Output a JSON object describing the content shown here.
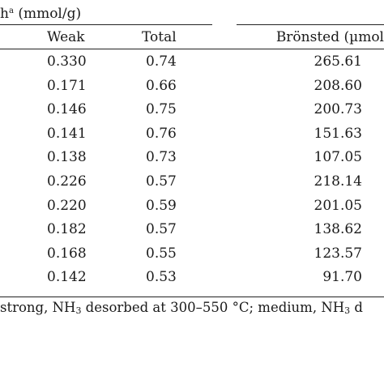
{
  "table": {
    "group_header": "h",
    "group_header_sup": "a",
    "group_header_unit": "(mmol/g)",
    "columns": {
      "weak": "Weak",
      "total": "Total",
      "bronsted": "Brönsted (µmol"
    },
    "rows": [
      {
        "weak": "0.330",
        "total": "0.74",
        "bronsted": "265.61"
      },
      {
        "weak": "0.171",
        "total": "0.66",
        "bronsted": "208.60"
      },
      {
        "weak": "0.146",
        "total": "0.75",
        "bronsted": "200.73"
      },
      {
        "weak": "0.141",
        "total": "0.76",
        "bronsted": "151.63"
      },
      {
        "weak": "0.138",
        "total": "0.73",
        "bronsted": "107.05"
      },
      {
        "weak": "0.226",
        "total": "0.57",
        "bronsted": "218.14"
      },
      {
        "weak": "0.220",
        "total": "0.59",
        "bronsted": "201.05"
      },
      {
        "weak": "0.182",
        "total": "0.57",
        "bronsted": "138.62"
      },
      {
        "weak": "0.168",
        "total": "0.55",
        "bronsted": "123.57"
      },
      {
        "weak": "0.142",
        "total": "0.53",
        "bronsted": "91.70"
      }
    ],
    "footnote": {
      "part1": "strong, NH",
      "sub1": "3",
      "part2": " desorbed at 300–550 °C; medium, NH",
      "sub2": "3",
      "part3": " d"
    }
  }
}
